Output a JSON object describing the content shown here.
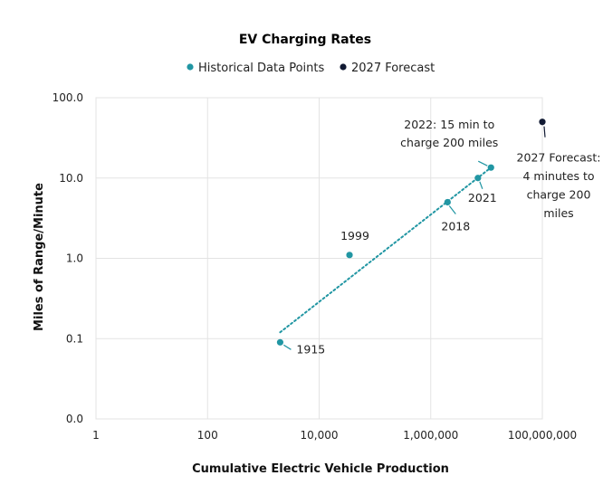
{
  "chart_data": {
    "type": "scatter",
    "title": "EV Charging Rates",
    "xlabel": "Cumulative Electric Vehicle Production",
    "ylabel": "Miles of Range/Minute",
    "x_scale": "log",
    "y_scale": "log",
    "xlim": [
      1,
      100000000
    ],
    "ylim": [
      0.0,
      100.0
    ],
    "x_ticks": [
      "1",
      "100",
      "10,000",
      "1,000,000",
      "100,000,000"
    ],
    "y_ticks": [
      "0.0",
      "0.1",
      "1.0",
      "10.0",
      "100.0"
    ],
    "grid": true,
    "legend_position": "top-center",
    "colors": {
      "historical": "#2196a3",
      "forecast": "#111a33",
      "grid": "#e3e3e3",
      "trend": "#2196a3"
    },
    "series": [
      {
        "name": "Historical Data Points",
        "points": [
          {
            "x": 2000,
            "y": 0.09,
            "label": "1915"
          },
          {
            "x": 35000,
            "y": 1.1,
            "label": "1999"
          },
          {
            "x": 2000000,
            "y": 5.0,
            "label": "2018"
          },
          {
            "x": 7000000,
            "y": 10.0,
            "label": "2021"
          },
          {
            "x": 12000000,
            "y": 13.5,
            "label": "2022: 15 min to\ncharge 200 miles"
          }
        ]
      },
      {
        "name": "2027 Forecast",
        "points": [
          {
            "x": 100000000,
            "y": 50.0,
            "label": "2027 Forecast:\n4 minutes to\ncharge 200\nmiles"
          }
        ]
      }
    ],
    "trendline": {
      "from": {
        "x": 2000,
        "y": 0.12
      },
      "to": {
        "x": 12000000,
        "y": 13.5
      },
      "style": "dotted"
    }
  }
}
